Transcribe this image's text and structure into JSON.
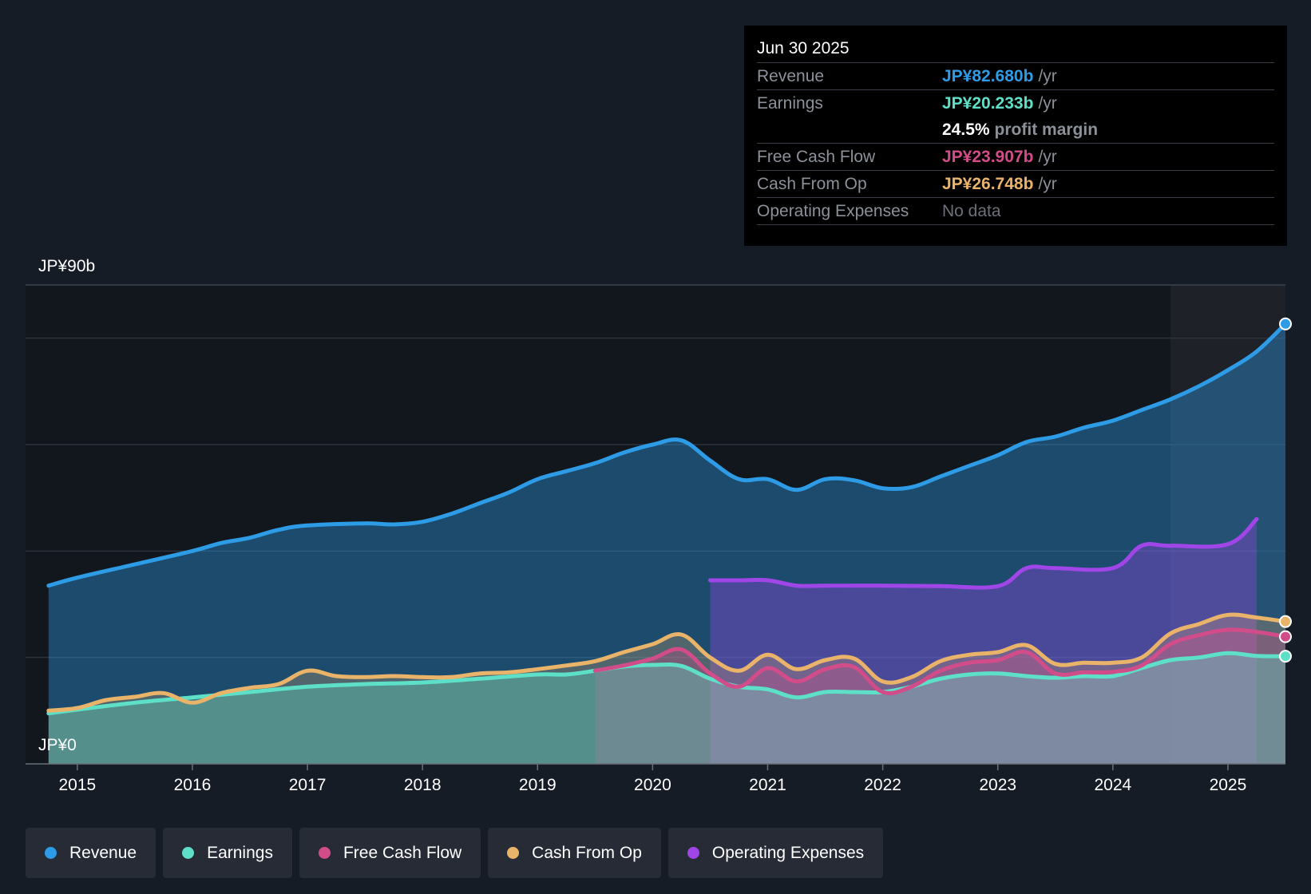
{
  "tooltip": {
    "date": "Jun 30 2025",
    "rows": {
      "revenue": {
        "label": "Revenue",
        "value": "JP¥82.680b",
        "unit": "/yr"
      },
      "earnings": {
        "label": "Earnings",
        "value": "JP¥20.233b",
        "unit": "/yr"
      },
      "margin": {
        "value": "24.5%",
        "text": "profit margin"
      },
      "fcf": {
        "label": "Free Cash Flow",
        "value": "JP¥23.907b",
        "unit": "/yr"
      },
      "cfo": {
        "label": "Cash From Op",
        "value": "JP¥26.748b",
        "unit": "/yr"
      },
      "opex": {
        "label": "Operating Expenses",
        "value": "No data"
      }
    }
  },
  "legend": [
    {
      "key": "revenue",
      "label": "Revenue"
    },
    {
      "key": "earnings",
      "label": "Earnings"
    },
    {
      "key": "fcf",
      "label": "Free Cash Flow"
    },
    {
      "key": "cfo",
      "label": "Cash From Op"
    },
    {
      "key": "opex",
      "label": "Operating Expenses"
    }
  ],
  "colors": {
    "revenue": "#2e9be6",
    "earnings": "#5ee0c8",
    "fcf": "#d24c8a",
    "cfo": "#eab36a",
    "opex": "#a046e8",
    "background": "#161c26",
    "tooltip_bg": "#000000"
  },
  "chart_data": {
    "type": "area",
    "title": "",
    "ylabel_top": "JP¥90b",
    "ylabel_bottom": "JP¥0",
    "ylim": [
      0,
      90
    ],
    "xlim": [
      2014.55,
      2025.5
    ],
    "gridlines": [
      20,
      40,
      60,
      80
    ],
    "forecast_start": 2024.5,
    "x_ticks": [
      {
        "value": 2015,
        "label": "2015"
      },
      {
        "value": 2016,
        "label": "2016"
      },
      {
        "value": 2017,
        "label": "2017"
      },
      {
        "value": 2018,
        "label": "2018"
      },
      {
        "value": 2019,
        "label": "2019"
      },
      {
        "value": 2020,
        "label": "2020"
      },
      {
        "value": 2021,
        "label": "2021"
      },
      {
        "value": 2022,
        "label": "2022"
      },
      {
        "value": 2023,
        "label": "2023"
      },
      {
        "value": 2024,
        "label": "2024"
      },
      {
        "value": 2025,
        "label": "2025"
      }
    ],
    "series": [
      {
        "key": "revenue",
        "name": "Revenue",
        "points": [
          [
            2014.75,
            33.5
          ],
          [
            2015.0,
            35.0
          ],
          [
            2015.5,
            37.5
          ],
          [
            2016.0,
            40.0
          ],
          [
            2016.25,
            41.5
          ],
          [
            2016.5,
            42.5
          ],
          [
            2016.75,
            44.0
          ],
          [
            2017.0,
            44.8
          ],
          [
            2017.5,
            45.2
          ],
          [
            2017.75,
            45.0
          ],
          [
            2018.0,
            45.5
          ],
          [
            2018.25,
            47.0
          ],
          [
            2018.5,
            49.0
          ],
          [
            2018.75,
            51.0
          ],
          [
            2019.0,
            53.5
          ],
          [
            2019.25,
            55.0
          ],
          [
            2019.5,
            56.5
          ],
          [
            2019.75,
            58.5
          ],
          [
            2020.0,
            60.0
          ],
          [
            2020.25,
            60.8
          ],
          [
            2020.5,
            57.0
          ],
          [
            2020.75,
            53.5
          ],
          [
            2021.0,
            53.5
          ],
          [
            2021.25,
            51.5
          ],
          [
            2021.5,
            53.5
          ],
          [
            2021.75,
            53.3
          ],
          [
            2022.0,
            51.8
          ],
          [
            2022.25,
            52.0
          ],
          [
            2022.5,
            54.0
          ],
          [
            2022.75,
            56.0
          ],
          [
            2023.0,
            58.0
          ],
          [
            2023.25,
            60.5
          ],
          [
            2023.5,
            61.5
          ],
          [
            2023.75,
            63.2
          ],
          [
            2024.0,
            64.5
          ],
          [
            2024.25,
            66.5
          ],
          [
            2024.5,
            68.5
          ],
          [
            2024.75,
            71.0
          ],
          [
            2025.0,
            74.0
          ],
          [
            2025.25,
            77.5
          ],
          [
            2025.5,
            82.68
          ]
        ]
      },
      {
        "key": "earnings",
        "name": "Earnings",
        "points": [
          [
            2014.75,
            9.5
          ],
          [
            2015.0,
            10.2
          ],
          [
            2015.5,
            11.5
          ],
          [
            2016.0,
            12.5
          ],
          [
            2016.5,
            13.5
          ],
          [
            2017.0,
            14.5
          ],
          [
            2017.5,
            15.0
          ],
          [
            2018.0,
            15.3
          ],
          [
            2018.5,
            16.0
          ],
          [
            2019.0,
            16.8
          ],
          [
            2019.25,
            16.8
          ],
          [
            2019.5,
            17.5
          ],
          [
            2019.75,
            18.3
          ],
          [
            2020.0,
            18.6
          ],
          [
            2020.25,
            18.4
          ],
          [
            2020.5,
            16.0
          ],
          [
            2020.75,
            14.5
          ],
          [
            2021.0,
            14.0
          ],
          [
            2021.25,
            12.5
          ],
          [
            2021.5,
            13.5
          ],
          [
            2021.75,
            13.5
          ],
          [
            2022.0,
            13.5
          ],
          [
            2022.25,
            14.5
          ],
          [
            2022.5,
            16.0
          ],
          [
            2022.75,
            16.8
          ],
          [
            2023.0,
            17.0
          ],
          [
            2023.25,
            16.5
          ],
          [
            2023.5,
            16.2
          ],
          [
            2023.75,
            16.5
          ],
          [
            2024.0,
            16.5
          ],
          [
            2024.25,
            18.0
          ],
          [
            2024.5,
            19.5
          ],
          [
            2024.75,
            20.0
          ],
          [
            2025.0,
            20.8
          ],
          [
            2025.25,
            20.3
          ],
          [
            2025.5,
            20.233
          ]
        ]
      },
      {
        "key": "fcf",
        "name": "Free Cash Flow",
        "points": [
          [
            2019.5,
            17.5
          ],
          [
            2019.75,
            18.5
          ],
          [
            2020.0,
            19.8
          ],
          [
            2020.25,
            21.5
          ],
          [
            2020.5,
            17.0
          ],
          [
            2020.75,
            14.5
          ],
          [
            2021.0,
            18.0
          ],
          [
            2021.25,
            15.5
          ],
          [
            2021.5,
            17.8
          ],
          [
            2021.75,
            18.2
          ],
          [
            2022.0,
            13.5
          ],
          [
            2022.25,
            14.5
          ],
          [
            2022.5,
            17.5
          ],
          [
            2022.75,
            19.0
          ],
          [
            2023.0,
            19.5
          ],
          [
            2023.25,
            21.0
          ],
          [
            2023.5,
            17.0
          ],
          [
            2023.75,
            17.2
          ],
          [
            2024.0,
            17.3
          ],
          [
            2024.25,
            18.5
          ],
          [
            2024.5,
            22.5
          ],
          [
            2024.75,
            24.2
          ],
          [
            2025.0,
            25.2
          ],
          [
            2025.25,
            24.8
          ],
          [
            2025.5,
            23.907
          ]
        ]
      },
      {
        "key": "cfo",
        "name": "Cash From Op",
        "points": [
          [
            2014.75,
            10.0
          ],
          [
            2015.0,
            10.5
          ],
          [
            2015.25,
            12.0
          ],
          [
            2015.5,
            12.6
          ],
          [
            2015.75,
            13.3
          ],
          [
            2016.0,
            11.5
          ],
          [
            2016.25,
            13.3
          ],
          [
            2016.5,
            14.3
          ],
          [
            2016.75,
            15.0
          ],
          [
            2017.0,
            17.5
          ],
          [
            2017.25,
            16.5
          ],
          [
            2017.5,
            16.3
          ],
          [
            2017.75,
            16.5
          ],
          [
            2018.0,
            16.3
          ],
          [
            2018.25,
            16.3
          ],
          [
            2018.5,
            17.0
          ],
          [
            2018.75,
            17.2
          ],
          [
            2019.0,
            17.8
          ],
          [
            2019.25,
            18.5
          ],
          [
            2019.5,
            19.3
          ],
          [
            2019.75,
            21.0
          ],
          [
            2020.0,
            22.5
          ],
          [
            2020.25,
            24.3
          ],
          [
            2020.5,
            20.0
          ],
          [
            2020.75,
            17.5
          ],
          [
            2021.0,
            20.5
          ],
          [
            2021.25,
            17.8
          ],
          [
            2021.5,
            19.5
          ],
          [
            2021.75,
            19.8
          ],
          [
            2022.0,
            15.5
          ],
          [
            2022.25,
            16.3
          ],
          [
            2022.5,
            19.3
          ],
          [
            2022.75,
            20.5
          ],
          [
            2023.0,
            21.0
          ],
          [
            2023.25,
            22.3
          ],
          [
            2023.5,
            18.8
          ],
          [
            2023.75,
            19.0
          ],
          [
            2024.0,
            19.0
          ],
          [
            2024.25,
            20.0
          ],
          [
            2024.5,
            24.5
          ],
          [
            2024.75,
            26.3
          ],
          [
            2025.0,
            28.0
          ],
          [
            2025.25,
            27.5
          ],
          [
            2025.5,
            26.748
          ]
        ]
      },
      {
        "key": "opex",
        "name": "Operating Expenses",
        "points": [
          [
            2020.5,
            34.5
          ],
          [
            2020.75,
            34.5
          ],
          [
            2021.0,
            34.5
          ],
          [
            2021.25,
            33.5
          ],
          [
            2021.5,
            33.5
          ],
          [
            2022.0,
            33.5
          ],
          [
            2022.5,
            33.4
          ],
          [
            2023.0,
            33.4
          ],
          [
            2023.25,
            36.8
          ],
          [
            2023.5,
            36.8
          ],
          [
            2024.0,
            36.8
          ],
          [
            2024.25,
            41.0
          ],
          [
            2024.5,
            41.0
          ],
          [
            2025.0,
            41.3
          ],
          [
            2025.25,
            46.0
          ]
        ]
      }
    ]
  }
}
